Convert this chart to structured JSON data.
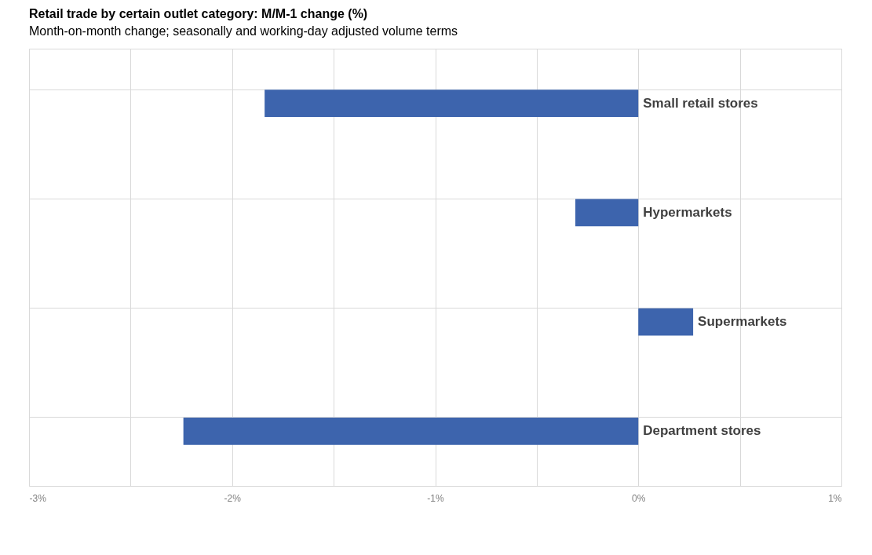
{
  "chart_data": {
    "type": "bar",
    "orientation": "horizontal",
    "title": "Retail trade by certain outlet category: M/M-1 change (%)",
    "subtitle": "Month-on-month change; seasonally and working-day adjusted volume terms",
    "categories": [
      "Small retail stores",
      "Hypermarkets",
      "Supermarkets",
      "Department stores"
    ],
    "values": [
      -1.84,
      -0.31,
      0.27,
      -2.24
    ],
    "color": "#3d64ad",
    "xlim": [
      -3,
      1
    ],
    "xticks": [
      {
        "value": -3,
        "label": "-3%"
      },
      {
        "value": -2.5,
        "label": null
      },
      {
        "value": -2,
        "label": "-2%"
      },
      {
        "value": -1.5,
        "label": null
      },
      {
        "value": -1,
        "label": "-1%"
      },
      {
        "value": -0.5,
        "label": null
      },
      {
        "value": 0,
        "label": "0%"
      },
      {
        "value": 0.5,
        "label": null
      },
      {
        "value": 1,
        "label": "1%"
      }
    ],
    "grid": true,
    "tick_labels": "x"
  }
}
